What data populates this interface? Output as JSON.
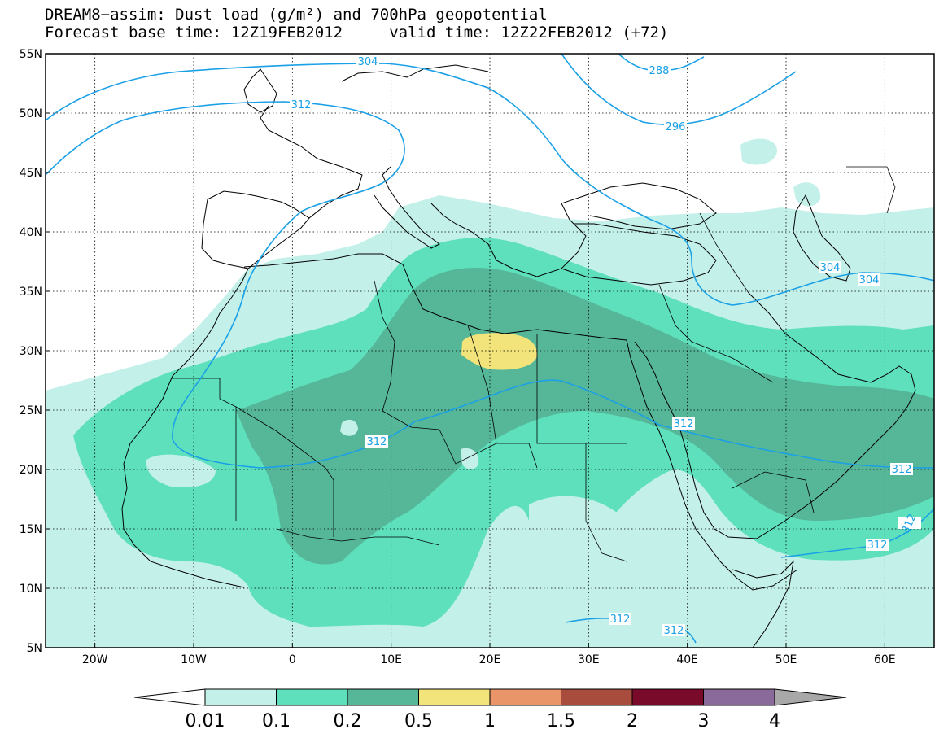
{
  "title": {
    "line1": "DREAM8−assim: Dust load (g/m²) and 700hPa geopotential",
    "line2": "Forecast base time: 12Z19FEB2012     valid time: 12Z22FEB2012 (+72)"
  },
  "map": {
    "lon_range": [
      -25,
      65
    ],
    "lat_range": [
      5,
      55
    ],
    "lon_ticks": [
      {
        "value": -20,
        "label": "20W"
      },
      {
        "value": -10,
        "label": "10W"
      },
      {
        "value": 0,
        "label": "0"
      },
      {
        "value": 10,
        "label": "10E"
      },
      {
        "value": 20,
        "label": "20E"
      },
      {
        "value": 30,
        "label": "30E"
      },
      {
        "value": 40,
        "label": "40E"
      },
      {
        "value": 50,
        "label": "50E"
      },
      {
        "value": 60,
        "label": "60E"
      }
    ],
    "lat_ticks": [
      {
        "value": 55,
        "label": "55N"
      },
      {
        "value": 50,
        "label": "50N"
      },
      {
        "value": 45,
        "label": "45N"
      },
      {
        "value": 40,
        "label": "40N"
      },
      {
        "value": 35,
        "label": "35N"
      },
      {
        "value": 30,
        "label": "30N"
      },
      {
        "value": 25,
        "label": "25N"
      },
      {
        "value": 20,
        "label": "20N"
      },
      {
        "value": 15,
        "label": "15N"
      },
      {
        "value": 10,
        "label": "10N"
      },
      {
        "value": 5,
        "label": "5N"
      }
    ],
    "grid": "dotted",
    "contour_color": "#1aa0e6",
    "contour_labels": [
      "304",
      "312",
      "288",
      "296",
      "304",
      "304",
      "312",
      "312",
      "312",
      "312",
      "312",
      "312",
      "312"
    ]
  },
  "colorbar": {
    "bins": [
      {
        "color": "#c4f0ea"
      },
      {
        "color": "#5ee0bc"
      },
      {
        "color": "#56b698"
      },
      {
        "color": "#f2e47a"
      },
      {
        "color": "#ea946a"
      },
      {
        "color": "#a84c3e"
      },
      {
        "color": "#7a0a2a"
      },
      {
        "color": "#8a6a9a"
      }
    ],
    "under_color": "#ffffff",
    "over_color": "#a8a8a8",
    "labels": [
      "0.01",
      "0.1",
      "0.2",
      "0.5",
      "1",
      "1.5",
      "2",
      "3",
      "4"
    ]
  }
}
